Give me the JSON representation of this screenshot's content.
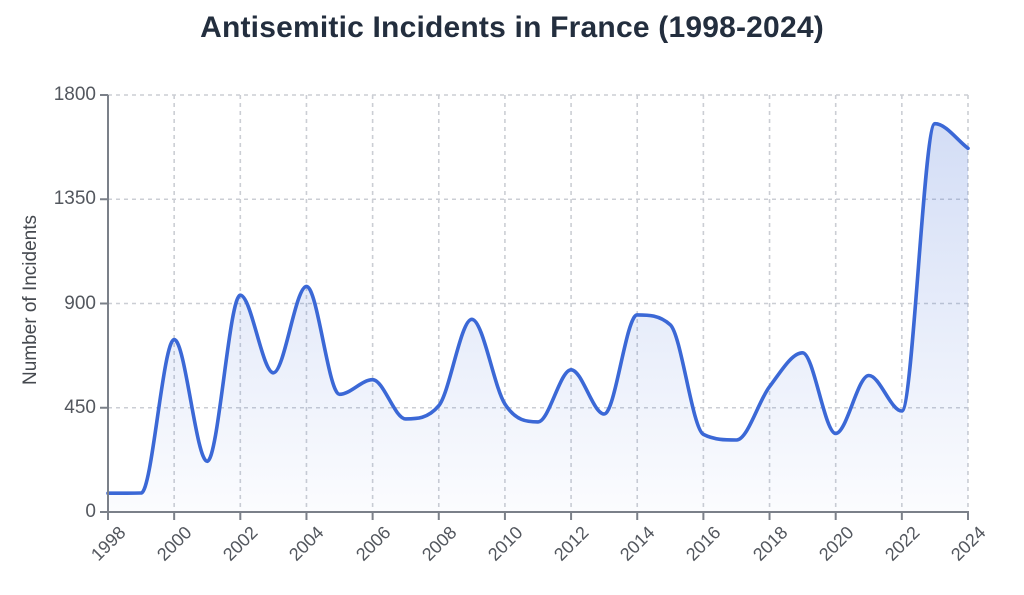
{
  "chart_data": {
    "type": "area",
    "title": "Antisemitic Incidents in France (1998-2024)",
    "xlabel": "",
    "ylabel": "Number of Incidents",
    "x": [
      1998,
      1999,
      2000,
      2001,
      2002,
      2003,
      2004,
      2005,
      2006,
      2007,
      2008,
      2009,
      2010,
      2011,
      2012,
      2013,
      2014,
      2015,
      2016,
      2017,
      2018,
      2019,
      2020,
      2021,
      2022,
      2023,
      2024
    ],
    "series": [
      {
        "name": "Number of Incidents",
        "values": [
          81,
          82,
          744,
          219,
          936,
          601,
          974,
          508,
          571,
          402,
          459,
          832,
          466,
          389,
          614,
          423,
          851,
          808,
          335,
          311,
          541,
          687,
          339,
          589,
          436,
          1676,
          1570
        ]
      }
    ],
    "x_tick_labels": [
      "1998",
      "2000",
      "2002",
      "2004",
      "2006",
      "2008",
      "2010",
      "2012",
      "2014",
      "2016",
      "2018",
      "2020",
      "2022",
      "2024"
    ],
    "y_ticks": [
      0,
      450,
      900,
      1350,
      1800
    ],
    "xlim": [
      1998,
      2024
    ],
    "ylim": [
      0,
      1800
    ],
    "grid": "dashed",
    "legend_position": "none",
    "smoothing": "monotone-cubic",
    "colors": {
      "line": "#3b68d6",
      "fill_top": "rgba(59,104,214,0.24)",
      "fill_bottom": "rgba(59,104,214,0.02)",
      "grid": "#cbced4",
      "axis": "#7b8089",
      "tick_label": "#53575e",
      "title": "#232e3e",
      "axis_title": "#45494f",
      "background": "#ffffff"
    }
  }
}
